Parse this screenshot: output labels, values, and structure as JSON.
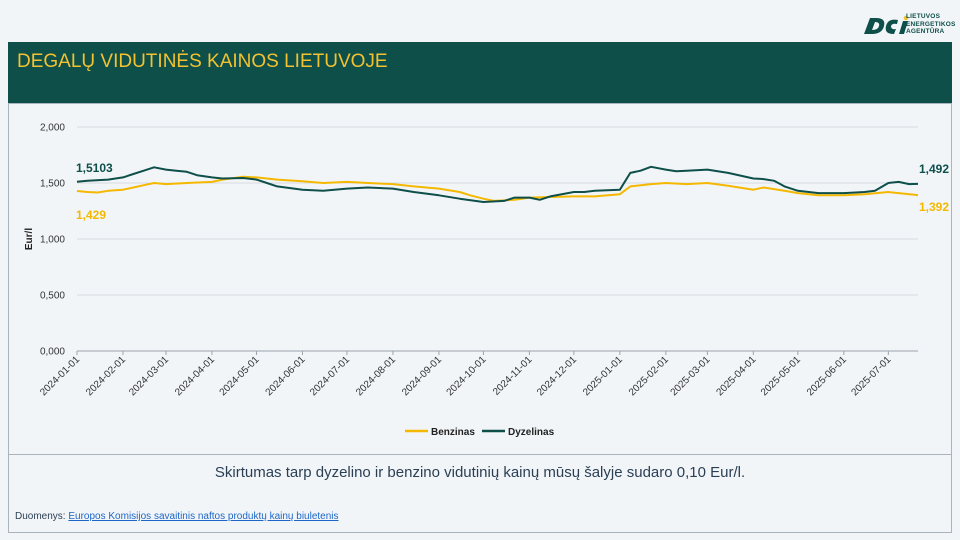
{
  "logo": {
    "icon": "lea-logo-icon",
    "lines": [
      "LIETUVOS",
      "ENERGETIKOS",
      "AGENTŪRA"
    ]
  },
  "header": {
    "title": "DEGALŲ VIDUTINĖS KAINOS LIETUVOJE"
  },
  "summary": "Skirtumas tarp dyzelino ir benzino vidutinių kainų mūsų šalyje sudaro 0,10 Eur/l.",
  "source": {
    "prefix": "Duomenys: ",
    "link_text": "Europos Komisijos savaitinis naftos produktų kainų biuletenis"
  },
  "colors": {
    "header_bg": "#0e4f4a",
    "title": "#f2c230",
    "benzinas": "#f5b800",
    "dyzelinas": "#0e4f4a"
  },
  "chart_data": {
    "type": "line",
    "ylabel": "Eur/l",
    "ylim": [
      0,
      2
    ],
    "yticks": [
      "0,000",
      "0,500",
      "1,000",
      "1,500",
      "2,000"
    ],
    "xlim": [
      "2024-01-01",
      "2025-07-21"
    ],
    "xticks": [
      "2024-01-01",
      "2024-02-01",
      "2024-03-01",
      "2024-04-01",
      "2024-05-01",
      "2024-06-01",
      "2024-07-01",
      "2024-08-01",
      "2024-09-01",
      "2024-10-01",
      "2024-11-01",
      "2024-12-01",
      "2025-01-01",
      "2025-02-01",
      "2025-03-01",
      "2025-04-01",
      "2025-05-01",
      "2025-06-01",
      "2025-07-01"
    ],
    "grid": true,
    "legend": "bottom",
    "series": [
      {
        "name": "Benzinas",
        "start_label": "1,429",
        "end_label": "1,392",
        "points": [
          [
            "2024-01-01",
            1.429
          ],
          [
            "2024-01-08",
            1.42
          ],
          [
            "2024-01-15",
            1.415
          ],
          [
            "2024-01-22",
            1.43
          ],
          [
            "2024-02-01",
            1.44
          ],
          [
            "2024-02-08",
            1.46
          ],
          [
            "2024-02-15",
            1.48
          ],
          [
            "2024-02-22",
            1.5
          ],
          [
            "2024-03-01",
            1.49
          ],
          [
            "2024-03-15",
            1.5
          ],
          [
            "2024-04-01",
            1.51
          ],
          [
            "2024-04-08",
            1.53
          ],
          [
            "2024-04-22",
            1.555
          ],
          [
            "2024-05-01",
            1.55
          ],
          [
            "2024-05-15",
            1.53
          ],
          [
            "2024-06-01",
            1.515
          ],
          [
            "2024-06-15",
            1.5
          ],
          [
            "2024-07-01",
            1.51
          ],
          [
            "2024-07-15",
            1.5
          ],
          [
            "2024-08-01",
            1.49
          ],
          [
            "2024-08-15",
            1.47
          ],
          [
            "2024-09-01",
            1.45
          ],
          [
            "2024-09-15",
            1.42
          ],
          [
            "2024-09-22",
            1.39
          ],
          [
            "2024-10-01",
            1.36
          ],
          [
            "2024-10-08",
            1.34
          ],
          [
            "2024-10-22",
            1.35
          ],
          [
            "2024-11-01",
            1.37
          ],
          [
            "2024-11-15",
            1.375
          ],
          [
            "2024-12-01",
            1.38
          ],
          [
            "2024-12-15",
            1.38
          ],
          [
            "2025-01-01",
            1.4
          ],
          [
            "2025-01-08",
            1.47
          ],
          [
            "2025-01-22",
            1.49
          ],
          [
            "2025-02-01",
            1.5
          ],
          [
            "2025-02-15",
            1.49
          ],
          [
            "2025-03-01",
            1.5
          ],
          [
            "2025-03-15",
            1.475
          ],
          [
            "2025-04-01",
            1.44
          ],
          [
            "2025-04-08",
            1.46
          ],
          [
            "2025-04-22",
            1.43
          ],
          [
            "2025-05-01",
            1.41
          ],
          [
            "2025-05-15",
            1.39
          ],
          [
            "2025-06-01",
            1.39
          ],
          [
            "2025-06-15",
            1.4
          ],
          [
            "2025-07-01",
            1.42
          ],
          [
            "2025-07-08",
            1.41
          ],
          [
            "2025-07-21",
            1.392
          ]
        ]
      },
      {
        "name": "Dyzelinas",
        "start_label": "1,5103",
        "end_label": "1,492",
        "points": [
          [
            "2024-01-01",
            1.5103
          ],
          [
            "2024-01-08",
            1.52
          ],
          [
            "2024-01-22",
            1.53
          ],
          [
            "2024-02-01",
            1.55
          ],
          [
            "2024-02-08",
            1.58
          ],
          [
            "2024-02-15",
            1.61
          ],
          [
            "2024-02-22",
            1.64
          ],
          [
            "2024-03-01",
            1.62
          ],
          [
            "2024-03-08",
            1.61
          ],
          [
            "2024-03-15",
            1.6
          ],
          [
            "2024-03-22",
            1.57
          ],
          [
            "2024-04-01",
            1.55
          ],
          [
            "2024-04-08",
            1.54
          ],
          [
            "2024-04-22",
            1.545
          ],
          [
            "2024-05-01",
            1.53
          ],
          [
            "2024-05-08",
            1.5
          ],
          [
            "2024-05-15",
            1.47
          ],
          [
            "2024-06-01",
            1.44
          ],
          [
            "2024-06-15",
            1.43
          ],
          [
            "2024-07-01",
            1.45
          ],
          [
            "2024-07-15",
            1.46
          ],
          [
            "2024-08-01",
            1.45
          ],
          [
            "2024-08-15",
            1.42
          ],
          [
            "2024-09-01",
            1.39
          ],
          [
            "2024-09-15",
            1.36
          ],
          [
            "2024-10-01",
            1.33
          ],
          [
            "2024-10-15",
            1.34
          ],
          [
            "2024-10-22",
            1.37
          ],
          [
            "2024-11-01",
            1.37
          ],
          [
            "2024-11-08",
            1.35
          ],
          [
            "2024-11-15",
            1.38
          ],
          [
            "2024-12-01",
            1.42
          ],
          [
            "2024-12-08",
            1.42
          ],
          [
            "2024-12-15",
            1.43
          ],
          [
            "2025-01-01",
            1.44
          ],
          [
            "2025-01-08",
            1.59
          ],
          [
            "2025-01-15",
            1.61
          ],
          [
            "2025-01-22",
            1.645
          ],
          [
            "2025-02-01",
            1.62
          ],
          [
            "2025-02-08",
            1.605
          ],
          [
            "2025-02-15",
            1.61
          ],
          [
            "2025-03-01",
            1.62
          ],
          [
            "2025-03-15",
            1.59
          ],
          [
            "2025-04-01",
            1.54
          ],
          [
            "2025-04-08",
            1.535
          ],
          [
            "2025-04-15",
            1.52
          ],
          [
            "2025-04-22",
            1.47
          ],
          [
            "2025-05-01",
            1.43
          ],
          [
            "2025-05-15",
            1.41
          ],
          [
            "2025-06-01",
            1.41
          ],
          [
            "2025-06-15",
            1.42
          ],
          [
            "2025-06-22",
            1.43
          ],
          [
            "2025-07-01",
            1.5
          ],
          [
            "2025-07-08",
            1.51
          ],
          [
            "2025-07-15",
            1.49
          ],
          [
            "2025-07-21",
            1.492
          ]
        ]
      }
    ]
  }
}
